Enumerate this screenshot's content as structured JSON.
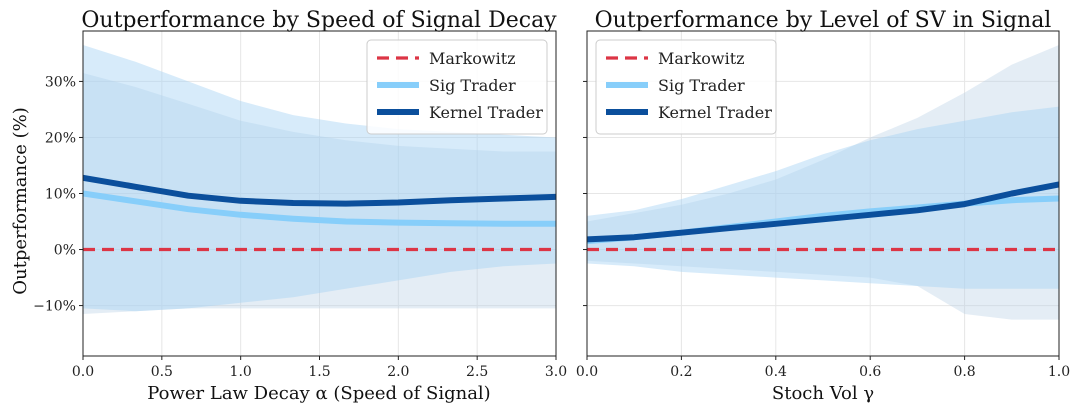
{
  "chart_data": [
    {
      "type": "line",
      "title": "Outperformance by Speed of Signal Decay",
      "xlabel": "Power Law Decay α (Speed of Signal)",
      "ylabel": "Outperformance (%)",
      "xlim": [
        0,
        3
      ],
      "ylim": [
        -19,
        39
      ],
      "x_ticks": [
        "0.0",
        "0.5",
        "1.0",
        "1.5",
        "2.0",
        "2.5",
        "3.0"
      ],
      "y_ticks": [
        "−10%",
        "0%",
        "10%",
        "20%",
        "30%"
      ],
      "grid": true,
      "legend_position": "top-right",
      "x": [
        0,
        0.333,
        0.667,
        1.0,
        1.333,
        1.667,
        2.0,
        2.333,
        2.667,
        3.0
      ],
      "series": [
        {
          "name": "Markowitz",
          "color": "#dc3545",
          "style": "dashed",
          "values": [
            0,
            0,
            0,
            0,
            0,
            0,
            0,
            0,
            0,
            0
          ]
        },
        {
          "name": "Sig Trader",
          "color": "#87cefa",
          "style": "solid",
          "values": [
            10,
            8.6,
            7.2,
            6.2,
            5.5,
            5.0,
            4.8,
            4.7,
            4.6,
            4.6
          ],
          "band_low": [
            -10.5,
            -11,
            -10.5,
            -9.5,
            -8.5,
            -7.0,
            -5.5,
            -4.0,
            -3.0,
            -2.5
          ],
          "band_high": [
            36.5,
            33.5,
            30,
            26.5,
            24,
            22.5,
            21.5,
            21,
            20.5,
            20
          ]
        },
        {
          "name": "Kernel Trader",
          "color": "#0b4f9c",
          "style": "solid",
          "values": [
            12.8,
            11.2,
            9.6,
            8.7,
            8.3,
            8.2,
            8.4,
            8.8,
            9.1,
            9.4
          ],
          "band_low": [
            -11.5,
            -11,
            -10.5,
            -10.5,
            -10.5,
            -10.5,
            -10.5,
            -10.5,
            -10.5,
            -10.5
          ],
          "band_high": [
            31.5,
            29,
            26,
            23,
            21,
            19.5,
            18.5,
            18,
            17.5,
            17.5
          ]
        }
      ]
    },
    {
      "type": "line",
      "title": "Outperformance by Level of SV in Signal",
      "xlabel": "Stoch Vol γ",
      "ylabel": "",
      "xlim": [
        0,
        1
      ],
      "ylim": [
        -19,
        39
      ],
      "x_ticks": [
        "0.0",
        "0.2",
        "0.4",
        "0.6",
        "0.8",
        "1.0"
      ],
      "y_ticks": [],
      "grid": true,
      "legend_position": "top-left",
      "x": [
        0,
        0.1,
        0.2,
        0.3,
        0.4,
        0.5,
        0.6,
        0.7,
        0.8,
        0.9,
        1.0
      ],
      "series": [
        {
          "name": "Markowitz",
          "color": "#dc3545",
          "style": "dashed",
          "values": [
            0,
            0,
            0,
            0,
            0,
            0,
            0,
            0,
            0,
            0,
            0
          ]
        },
        {
          "name": "Sig Trader",
          "color": "#87cefa",
          "style": "solid",
          "values": [
            1.5,
            2.2,
            3.0,
            4.0,
            5.0,
            6.0,
            6.8,
            7.5,
            8.2,
            8.8,
            9.1
          ],
          "band_low": [
            -2.5,
            -3,
            -4,
            -4.5,
            -5,
            -5.5,
            -6,
            -6.5,
            -7,
            -7,
            -7
          ],
          "band_high": [
            6,
            7,
            9,
            11.5,
            14,
            17,
            19.5,
            21.5,
            23,
            24.5,
            25.5
          ]
        },
        {
          "name": "Kernel Trader",
          "color": "#0b4f9c",
          "style": "solid",
          "values": [
            1.8,
            2.2,
            3.0,
            3.8,
            4.6,
            5.4,
            6.2,
            7.0,
            8.1,
            10.0,
            11.6
          ],
          "band_low": [
            -2,
            -2.5,
            -3,
            -3.5,
            -4,
            -4.5,
            -5,
            -6.5,
            -11.5,
            -12.5,
            -12.5
          ],
          "band_high": [
            5,
            6.5,
            8,
            10,
            12.5,
            16,
            20,
            23.5,
            28,
            33,
            36.5
          ]
        }
      ]
    }
  ]
}
